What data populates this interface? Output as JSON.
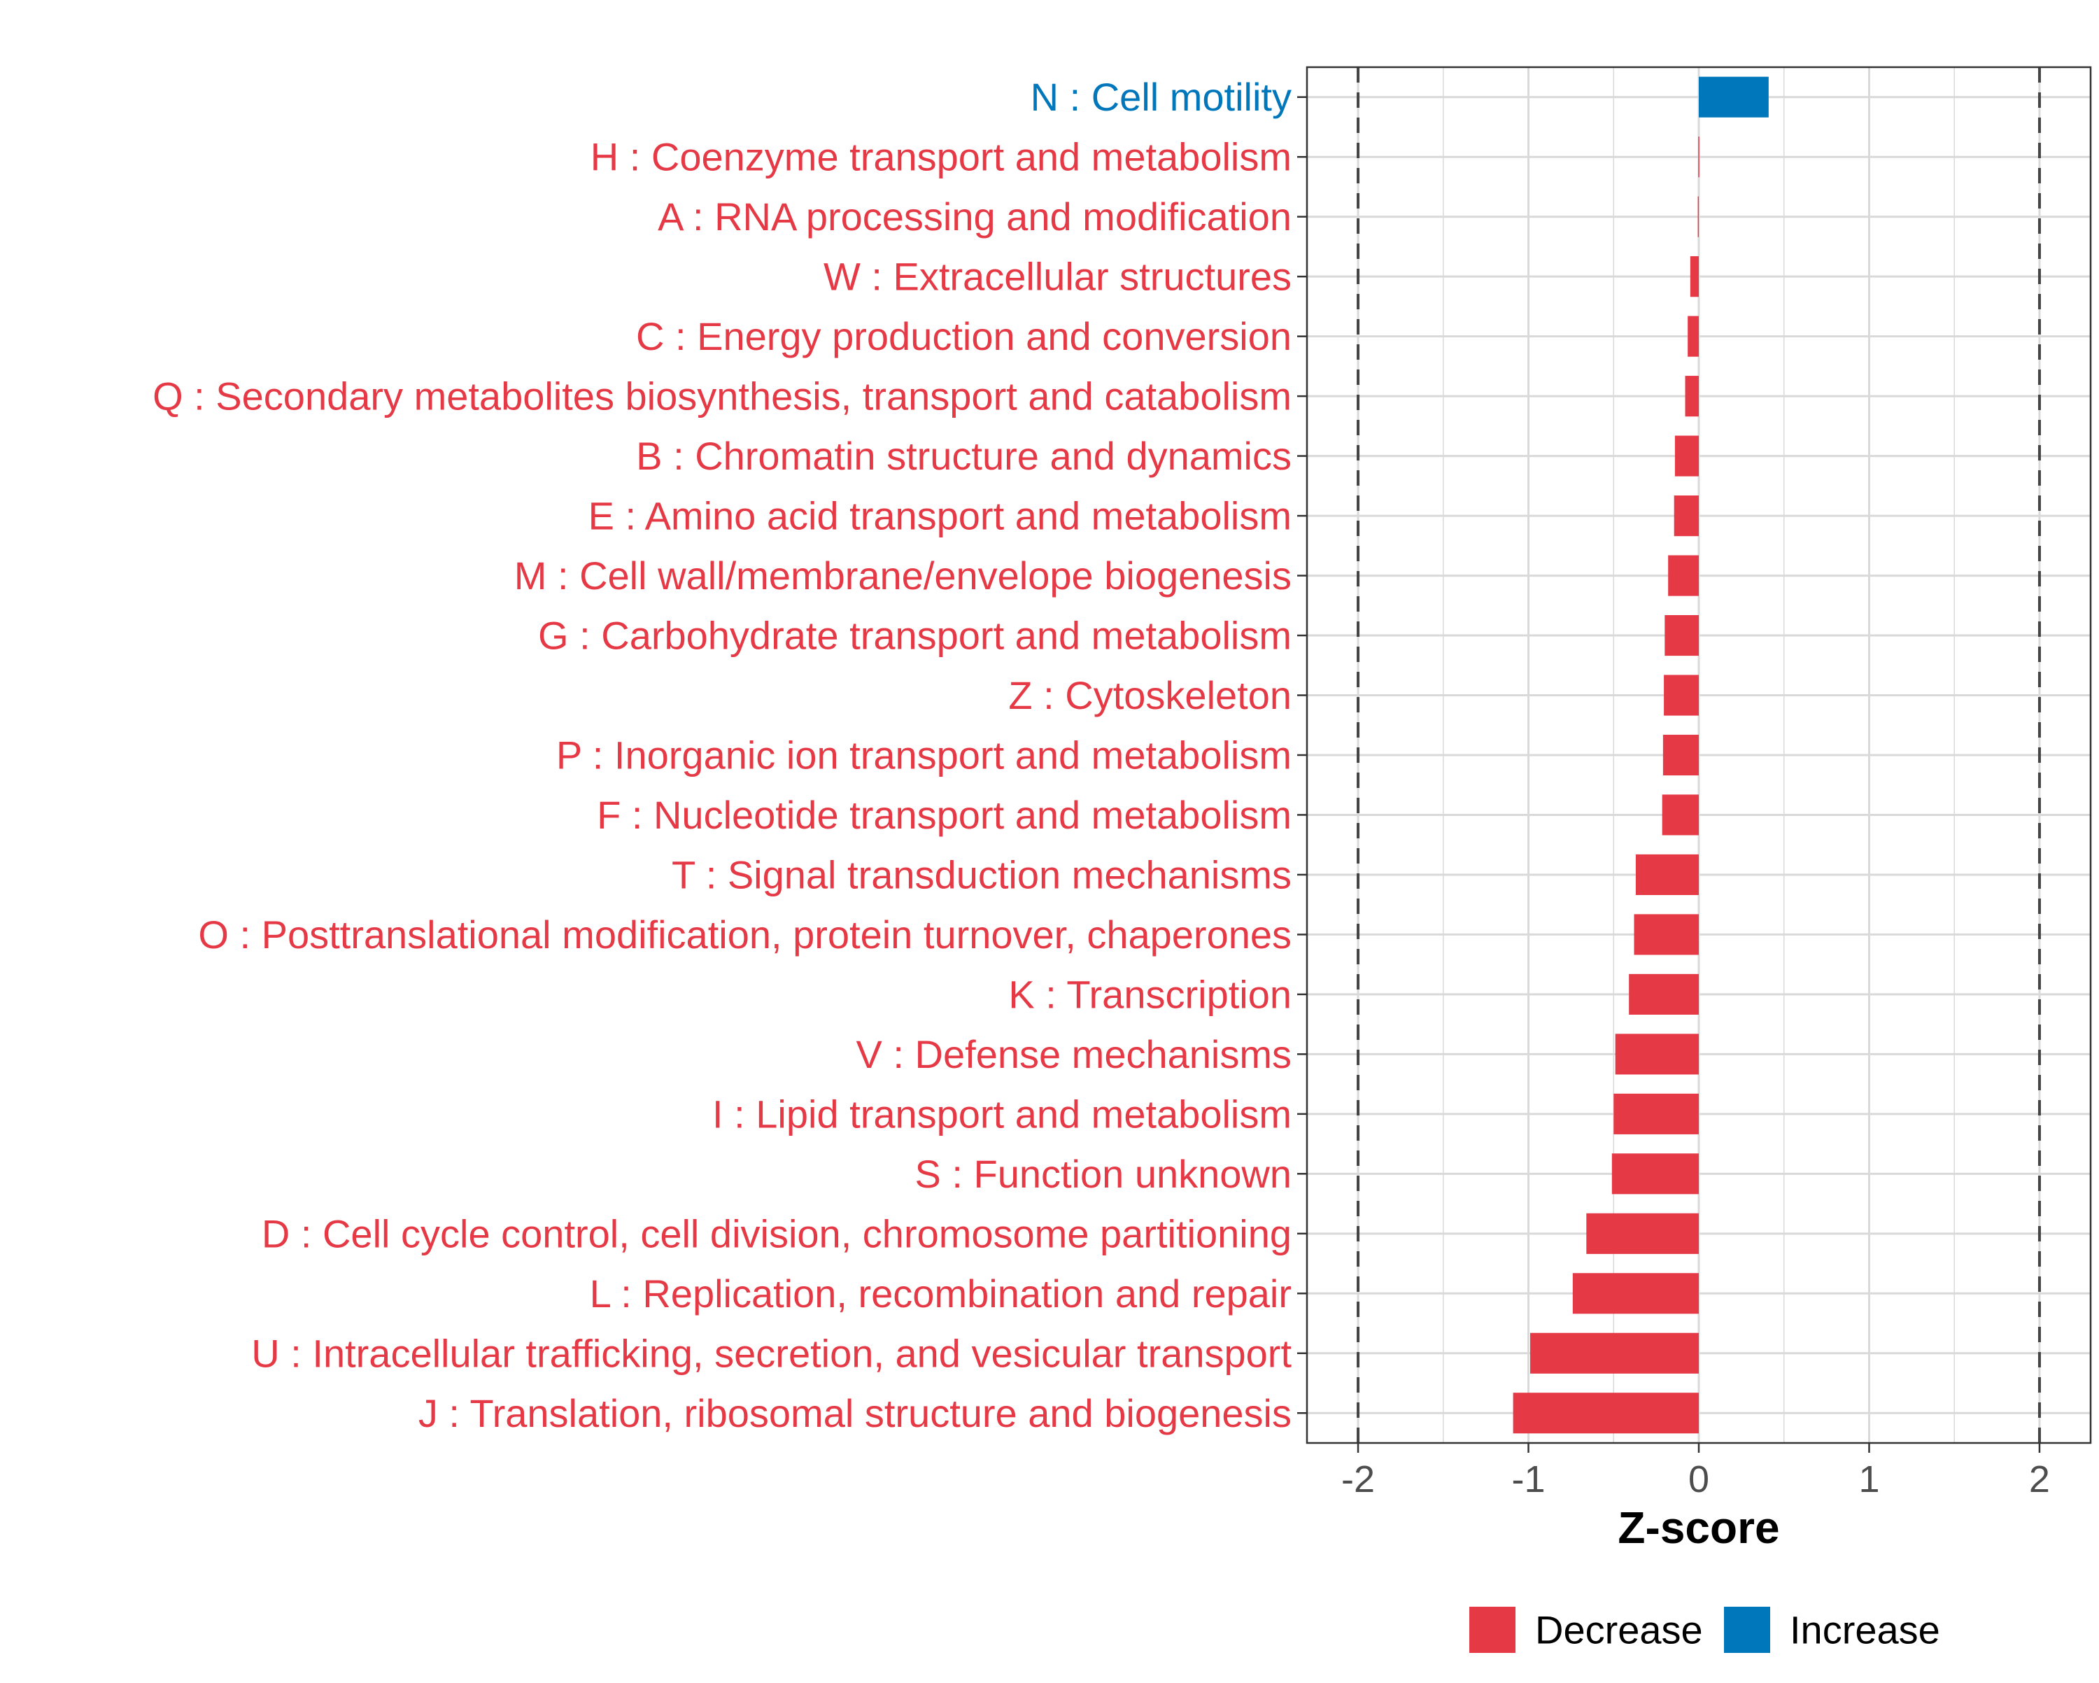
{
  "chart_data": {
    "type": "bar",
    "orientation": "horizontal",
    "xlabel": "Z-score",
    "xlim": [
      -2.3,
      2.3
    ],
    "x_ticks": [
      "-2",
      "-1",
      "0",
      "1",
      "2"
    ],
    "x_tick_values": [
      -2,
      -1,
      0,
      1,
      2
    ],
    "reference_lines": [
      -2,
      2
    ],
    "colors": {
      "Decrease": "#E63946",
      "Increase": "#0077BB"
    },
    "legend": {
      "position": "bottom",
      "items": [
        {
          "label": "Decrease",
          "key": "Decrease"
        },
        {
          "label": "Increase",
          "key": "Increase"
        }
      ]
    },
    "categories": [
      {
        "label": "N : Cell motility",
        "value": 0.41,
        "group": "Increase"
      },
      {
        "label": "H : Coenzyme transport and metabolism",
        "value": -0.003,
        "group": "Decrease"
      },
      {
        "label": "A : RNA processing and modification",
        "value": -0.006,
        "group": "Decrease"
      },
      {
        "label": "W : Extracellular structures",
        "value": -0.05,
        "group": "Decrease"
      },
      {
        "label": "C : Energy production and conversion",
        "value": -0.065,
        "group": "Decrease"
      },
      {
        "label": "Q : Secondary metabolites biosynthesis, transport and catabolism",
        "value": -0.08,
        "group": "Decrease"
      },
      {
        "label": "B : Chromatin structure and dynamics",
        "value": -0.14,
        "group": "Decrease"
      },
      {
        "label": "E : Amino acid transport and metabolism",
        "value": -0.145,
        "group": "Decrease"
      },
      {
        "label": "M : Cell wall/membrane/envelope biogenesis",
        "value": -0.18,
        "group": "Decrease"
      },
      {
        "label": "G : Carbohydrate transport and metabolism",
        "value": -0.2,
        "group": "Decrease"
      },
      {
        "label": "Z : Cytoskeleton",
        "value": -0.205,
        "group": "Decrease"
      },
      {
        "label": "P : Inorganic ion transport and metabolism",
        "value": -0.21,
        "group": "Decrease"
      },
      {
        "label": "F : Nucleotide transport and metabolism",
        "value": -0.215,
        "group": "Decrease"
      },
      {
        "label": "T : Signal transduction mechanisms",
        "value": -0.37,
        "group": "Decrease"
      },
      {
        "label": "O : Posttranslational modification, protein turnover, chaperones",
        "value": -0.38,
        "group": "Decrease"
      },
      {
        "label": "K : Transcription",
        "value": -0.41,
        "group": "Decrease"
      },
      {
        "label": "V : Defense mechanisms",
        "value": -0.49,
        "group": "Decrease"
      },
      {
        "label": "I : Lipid transport and metabolism",
        "value": -0.5,
        "group": "Decrease"
      },
      {
        "label": "S : Function unknown",
        "value": -0.51,
        "group": "Decrease"
      },
      {
        "label": "D : Cell cycle control, cell division, chromosome partitioning",
        "value": -0.66,
        "group": "Decrease"
      },
      {
        "label": "L : Replication, recombination and repair",
        "value": -0.74,
        "group": "Decrease"
      },
      {
        "label": "U : Intracellular trafficking, secretion, and vesicular transport",
        "value": -0.99,
        "group": "Decrease"
      },
      {
        "label": "J : Translation, ribosomal structure and biogenesis",
        "value": -1.09,
        "group": "Decrease"
      }
    ]
  }
}
